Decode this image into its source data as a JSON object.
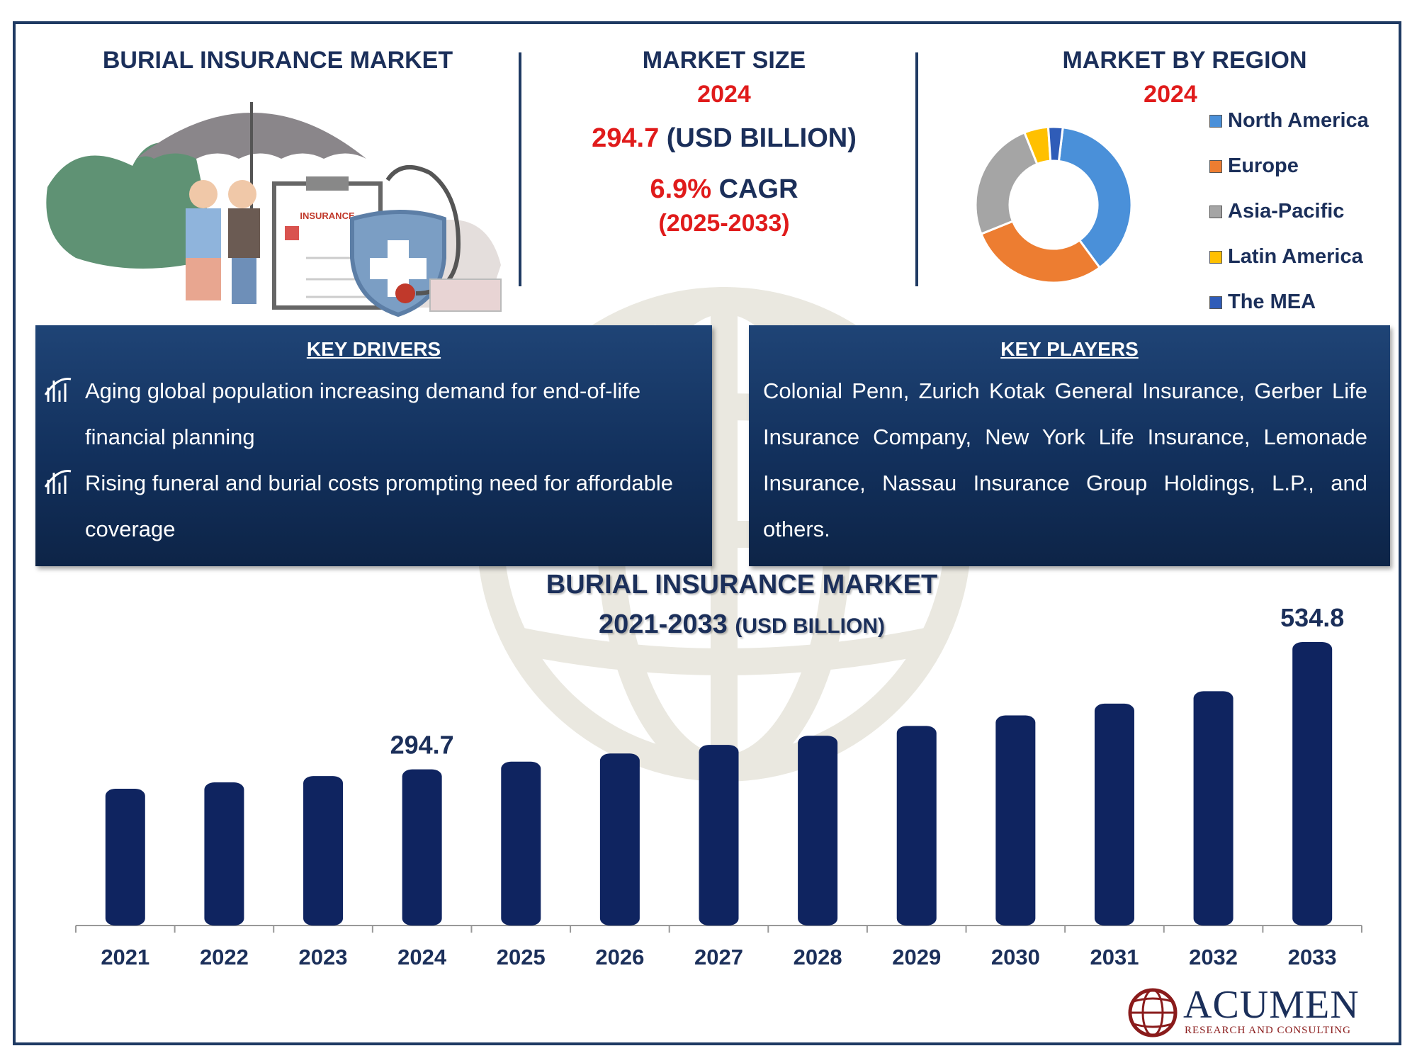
{
  "header": {
    "title": "BURIAL INSURANCE MARKET",
    "market_size": {
      "label": "MARKET SIZE",
      "year": "2024",
      "value": "294.7",
      "unit": "(USD BILLION)",
      "cagr_value": "6.9%",
      "cagr_label": "CAGR",
      "cagr_period": "(2025-2033)"
    },
    "region": {
      "label": "MARKET BY REGION",
      "year": "2024",
      "legend": [
        {
          "name": "North America",
          "color": "#4a90d9"
        },
        {
          "name": "Europe",
          "color": "#ed7d31"
        },
        {
          "name": "Asia-Pacific",
          "color": "#a5a5a5"
        },
        {
          "name": "Latin America",
          "color": "#ffc000"
        },
        {
          "name": "The MEA",
          "color": "#2f5cb8"
        }
      ],
      "shares": [
        38,
        29,
        25,
        5,
        3
      ]
    },
    "illustration": {
      "card_text": "INSURANCE"
    }
  },
  "drivers": {
    "title": "KEY DRIVERS",
    "items": [
      "Aging global population increasing demand for end-of-life financial planning",
      "Rising funeral and burial costs prompting need for affordable coverage"
    ]
  },
  "players": {
    "title": "KEY PLAYERS",
    "text": "Colonial Penn, Zurich Kotak General Insurance, Gerber Life Insurance Company, New York Life Insurance, Lemonade Insurance, Nassau Insurance Group Holdings, L.P., and others."
  },
  "chart_data": {
    "type": "bar",
    "title": "BURIAL INSURANCE MARKET",
    "subtitle_years": "2021-2033",
    "subtitle_unit": "(USD BILLION)",
    "categories": [
      "2021",
      "2022",
      "2023",
      "2024",
      "2025",
      "2026",
      "2027",
      "2028",
      "2029",
      "2030",
      "2031",
      "2032",
      "2033"
    ],
    "values": [
      258.0,
      270.0,
      282.0,
      294.7,
      309.2,
      324.5,
      340.8,
      357.9,
      376.5,
      396.4,
      418.6,
      442.0,
      534.8
    ],
    "data_labels": {
      "2024": "294.7",
      "2033": "534.8"
    },
    "bar_color": "#0f2460"
  },
  "brand": {
    "name": "ACUMEN",
    "tagline": "RESEARCH AND CONSULTING"
  }
}
